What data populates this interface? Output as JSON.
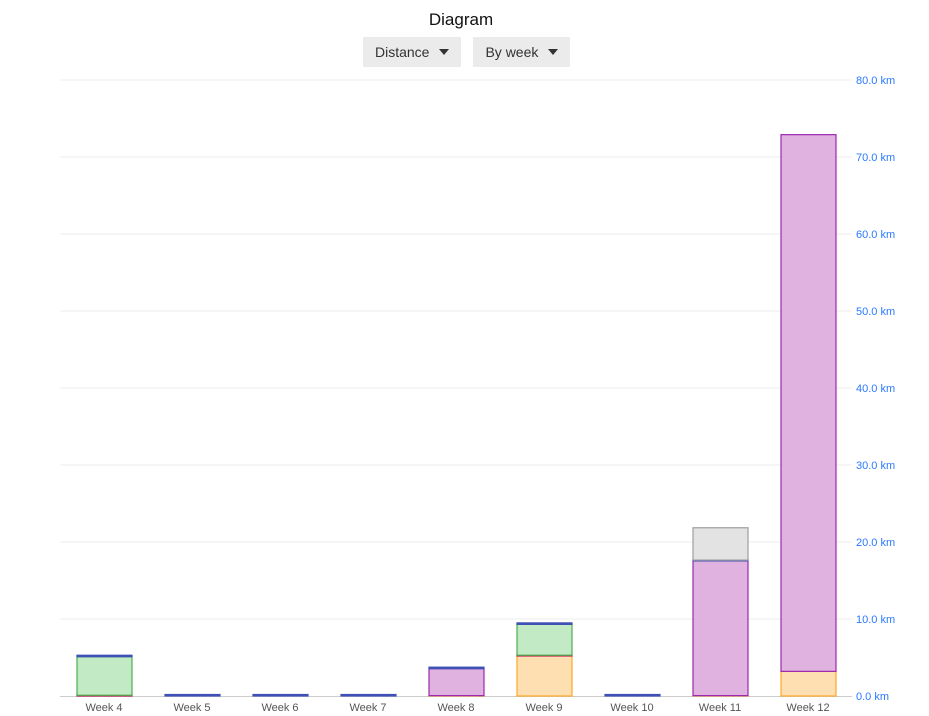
{
  "title": "Diagram",
  "controls": {
    "metric": "Distance",
    "period": "By week"
  },
  "chart_data": {
    "type": "bar",
    "stacked": true,
    "categories": [
      "Week 4",
      "Week 5",
      "Week 6",
      "Week 7",
      "Week 8",
      "Week 9",
      "Week 10",
      "Week 11",
      "Week 12"
    ],
    "ylim": [
      0,
      80
    ],
    "yticks": [
      "0.0 km",
      "10.0 km",
      "20.0 km",
      "30.0 km",
      "40.0 km",
      "50.0 km",
      "60.0 km",
      "70.0 km",
      "80.0 km"
    ],
    "ytick_values": [
      0,
      10,
      20,
      30,
      40,
      50,
      60,
      70,
      80
    ],
    "y_axis_position": "right",
    "grid": true,
    "series": [
      {
        "color": "#ffa726",
        "fill": "#fddfb2",
        "values": [
          0,
          0,
          0,
          0,
          0.05,
          5.2,
          0,
          0.05,
          3.2
        ]
      },
      {
        "color": "#c2185b",
        "fill": "#f0b0c8",
        "values": [
          0.1,
          0,
          0,
          0,
          0,
          0.1,
          0,
          0,
          0
        ]
      },
      {
        "color": "#4caf50",
        "fill": "#c2eac4",
        "values": [
          5.0,
          0,
          0,
          0,
          0,
          4.0,
          0,
          0,
          0
        ]
      },
      {
        "color": "#9c27b0",
        "fill": "#e0b2df",
        "values": [
          0,
          0,
          0,
          0,
          3.5,
          0,
          0,
          17.5,
          69.7
        ]
      },
      {
        "color": "#3f51b5",
        "fill": "#3f51b5",
        "values": [
          0.1,
          0.1,
          0.1,
          0.1,
          0.1,
          0.1,
          0.1,
          0.1,
          0
        ]
      },
      {
        "color": "#9e9e9e",
        "fill": "#e3e3e3",
        "values": [
          0,
          0,
          0,
          0,
          0,
          0,
          0,
          4.2,
          0
        ]
      }
    ]
  },
  "colors": {
    "tick_label": "#2979ff",
    "category_label": "#555555",
    "grid": "#eeeeee"
  }
}
